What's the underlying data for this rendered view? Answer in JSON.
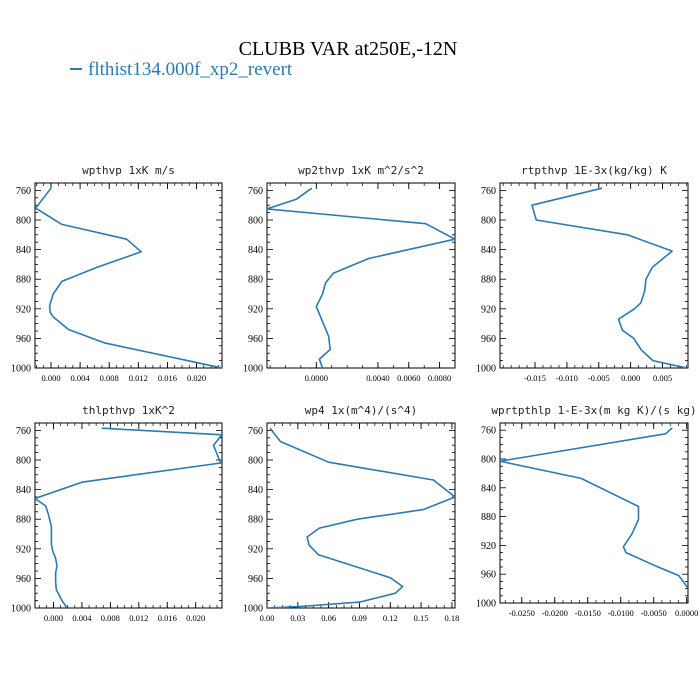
{
  "figure": {
    "title": "CLUBB VAR at250E,-12N",
    "legend_label": "flthist134.000f_xp2_revert",
    "line_color": "#2a7bb0"
  },
  "chart_data": [
    {
      "type": "line",
      "title": "wpthvp  1xK m/s",
      "xlim": [
        -0.0022,
        0.0235
      ],
      "ylim": [
        1000,
        750
      ],
      "xticks": [
        0.0,
        0.004,
        0.008,
        0.012,
        0.016,
        0.02
      ],
      "xticklabels": [
        "0.000",
        "0.004",
        "0.008",
        "0.012",
        "0.016",
        "0.020"
      ],
      "yticks": [
        760,
        800,
        840,
        880,
        920,
        960,
        1000
      ],
      "x": [
        0.0,
        -0.0021,
        0.0015,
        0.0104,
        0.0124,
        0.0063,
        0.0015,
        0.0003,
        -0.0002,
        -0.0001,
        0.0003,
        0.0024,
        0.0073,
        0.0235
      ],
      "y": [
        757,
        784,
        806,
        826,
        843,
        864,
        883,
        900,
        916,
        925,
        931,
        948,
        966,
        1000
      ]
    },
    {
      "type": "line",
      "title": "wp2thvp  1xK m^2/s^2",
      "xlim": [
        -0.0032,
        0.009
      ],
      "ylim": [
        1000,
        750
      ],
      "xticks": [
        0.0,
        0.004,
        0.006,
        0.008
      ],
      "xticklabels": [
        "0.0000",
        "0.0040",
        "0.0060",
        "0.0080"
      ],
      "yticks": [
        760,
        800,
        840,
        880,
        920,
        960,
        1000
      ],
      "x": [
        -0.0003,
        -0.0013,
        -0.0032,
        0.0071,
        0.009,
        0.0034,
        0.0011,
        0.0006,
        0.0004,
        0.0,
        0.0003,
        0.0008,
        0.0009,
        0.0002,
        0.0004
      ],
      "y": [
        757,
        772,
        785,
        805,
        826,
        852,
        872,
        885,
        900,
        917,
        932,
        957,
        975,
        988,
        1000
      ]
    },
    {
      "type": "line",
      "title": "rtpthvp  1E-3x(kg/kg) K",
      "xlim": [
        -0.0205,
        0.009
      ],
      "ylim": [
        1000,
        750
      ],
      "xticks": [
        -0.015,
        -0.01,
        -0.005,
        0.0,
        0.005
      ],
      "xticklabels": [
        "-0.015",
        "-0.010",
        "-0.005",
        "0.000",
        "0.005"
      ],
      "yticks": [
        760,
        800,
        840,
        880,
        920,
        960,
        1000
      ],
      "x": [
        -0.0045,
        -0.0155,
        -0.0148,
        -0.0005,
        0.0065,
        0.0034,
        0.0024,
        0.0022,
        0.0016,
        0.0006,
        -0.0019,
        -0.0013,
        0.0005,
        0.0017,
        0.0035,
        0.0088
      ],
      "y": [
        757,
        780,
        800,
        820,
        842,
        864,
        880,
        896,
        912,
        920,
        934,
        949,
        960,
        976,
        990,
        1000
      ]
    },
    {
      "type": "line",
      "title": "thlpthvp  1xK^2",
      "xlim": [
        -0.0026,
        0.0237
      ],
      "ylim": [
        1000,
        750
      ],
      "xticks": [
        0.0,
        0.004,
        0.008,
        0.012,
        0.016,
        0.02
      ],
      "xticklabels": [
        "0.000",
        "0.004",
        "0.008",
        "0.012",
        "0.016",
        "0.020"
      ],
      "yticks": [
        760,
        800,
        840,
        880,
        920,
        960,
        1000
      ],
      "x": [
        0.0068,
        0.0237,
        0.0225,
        0.0235,
        0.004,
        -0.0026,
        -0.0011,
        -0.0007,
        -0.0003,
        -0.0003,
        -0.0003,
        -0.0001,
        0.0003,
        0.0005,
        0.0003,
        0.0003,
        0.0004,
        0.0012,
        0.0019
      ],
      "y": [
        757,
        766,
        780,
        804,
        830,
        852,
        862,
        874,
        890,
        904,
        914,
        923,
        933,
        943,
        953,
        964,
        975,
        990,
        1000
      ]
    },
    {
      "type": "line",
      "title": "wp4  1x(m^4)/(s^4)",
      "xlim": [
        0.0,
        0.183
      ],
      "ylim": [
        1000,
        750
      ],
      "xticks": [
        0.0,
        0.03,
        0.06,
        0.09,
        0.12,
        0.15,
        0.18
      ],
      "xticklabels": [
        "0.00",
        "0.03",
        "0.06",
        "0.09",
        "0.12",
        "0.15",
        "0.18"
      ],
      "yticks": [
        760,
        800,
        840,
        880,
        920,
        960,
        1000
      ],
      "x": [
        0.003,
        0.013,
        0.06,
        0.162,
        0.183,
        0.152,
        0.088,
        0.051,
        0.039,
        0.041,
        0.05,
        0.079,
        0.12,
        0.132,
        0.125,
        0.09,
        0.032,
        0.0
      ],
      "y": [
        757,
        775,
        803,
        827,
        850,
        867,
        880,
        892,
        904,
        915,
        928,
        941,
        959,
        971,
        980,
        992,
        998,
        1000
      ]
    },
    {
      "type": "line",
      "title": "wprtpthlp  1-E-3x(m kg K)/(s kg)",
      "xlim": [
        -0.0283,
        0.0002
      ],
      "ylim": [
        1000,
        750
      ],
      "xticks": [
        -0.025,
        -0.02,
        -0.015,
        -0.01,
        -0.005,
        0.0
      ],
      "xticklabels": [
        "-0.0250",
        "-0.0200",
        "-0.0150",
        "-0.0100",
        "-0.0050",
        "0.0000"
      ],
      "yticks": [
        760,
        800,
        840,
        880,
        920,
        960,
        1000
      ],
      "x": [
        -0.0022,
        -0.0032,
        -0.0283,
        -0.016,
        -0.0073,
        -0.0073,
        -0.0083,
        -0.0096,
        -0.0092,
        -0.0046,
        -0.0012,
        0.0001
      ],
      "y": [
        757,
        765,
        803,
        827,
        866,
        884,
        904,
        922,
        930,
        949,
        962,
        978
      ]
    }
  ]
}
